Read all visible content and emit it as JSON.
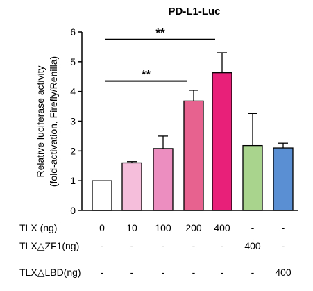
{
  "chart_data": {
    "type": "bar",
    "title": "PD-L1-Luc",
    "ylabel_lines": [
      "Relative luciferase activity",
      "(fold-activation, Firefly/Renilla)"
    ],
    "ylim": [
      0,
      6
    ],
    "yticks": [
      0,
      1,
      2,
      3,
      4,
      5,
      6
    ],
    "bars": [
      {
        "value": 1.0,
        "error": 0.0,
        "color": "#ffffff"
      },
      {
        "value": 1.6,
        "error": 0.04,
        "color": "#f5bfdb"
      },
      {
        "value": 2.08,
        "error": 0.42,
        "color": "#ed8ec1"
      },
      {
        "value": 3.68,
        "error": 0.36,
        "color": "#e8628f"
      },
      {
        "value": 4.63,
        "error": 0.67,
        "color": "#e8207a"
      },
      {
        "value": 2.18,
        "error": 1.08,
        "color": "#a8d48e"
      },
      {
        "value": 2.1,
        "error": 0.16,
        "color": "#5b8fd4"
      }
    ],
    "significance": [
      {
        "from_bar": 0,
        "to_bar": 4,
        "label": "**",
        "y": 5.75
      },
      {
        "from_bar": 0,
        "to_bar": 3,
        "label": "**",
        "y": 4.35
      }
    ],
    "condition_rows": [
      {
        "label": "TLX (ng)",
        "values": [
          "0",
          "10",
          "100",
          "200",
          "400",
          "-",
          "-"
        ]
      },
      {
        "label": "TLX△ZF1(ng)",
        "values": [
          "-",
          "-",
          "-",
          "-",
          "-",
          "400",
          "-"
        ]
      },
      {
        "label": "TLX△LBD(ng)",
        "values": [
          "-",
          "-",
          "-",
          "-",
          "-",
          "-",
          "400"
        ]
      }
    ],
    "grid": false,
    "legend": "none"
  }
}
